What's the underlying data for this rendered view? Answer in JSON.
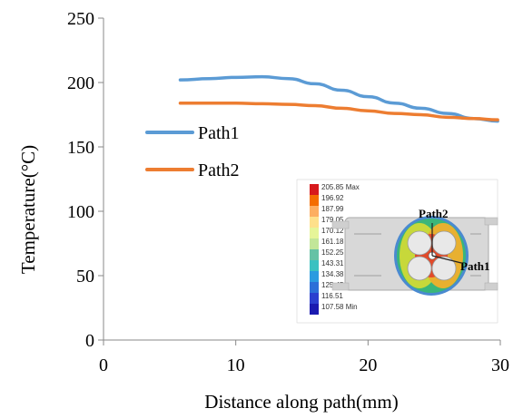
{
  "chart_data": {
    "type": "line",
    "xlabel": "Distance along path(mm)",
    "ylabel": "Temperature(°C)",
    "xlim": [
      0,
      30
    ],
    "ylim": [
      0,
      250
    ],
    "x_ticks": [
      "0",
      "10",
      "20",
      "30"
    ],
    "y_ticks": [
      "0",
      "50",
      "100",
      "150",
      "200",
      "250"
    ],
    "grid": false,
    "legend_position": "left-middle",
    "series": [
      {
        "name": "Path1",
        "color": "#5b9bd5",
        "x": [
          5.8,
          8,
          10,
          12,
          14,
          16,
          18,
          20,
          22,
          24,
          26,
          28,
          29.8
        ],
        "y": [
          202,
          203,
          204,
          204.5,
          203,
          199,
          194,
          189,
          184,
          180,
          176,
          172,
          170
        ]
      },
      {
        "name": "Path2",
        "color": "#ed7d31",
        "x": [
          5.8,
          8,
          10,
          12,
          14,
          16,
          18,
          20,
          22,
          24,
          26,
          28,
          29.8
        ],
        "y": [
          184,
          184,
          184,
          183.5,
          183,
          182,
          180,
          178,
          176,
          175,
          173,
          172,
          171
        ]
      }
    ]
  },
  "inset": {
    "colorbar_labels": [
      "205.85 Max",
      "196.92",
      "187.99",
      "179.05",
      "170.12",
      "161.18",
      "152.25",
      "143.31",
      "134.38",
      "125.45",
      "116.51",
      "107.58 Min"
    ],
    "colorbar_colors": [
      "#d7191c",
      "#f46d00",
      "#fdae61",
      "#fee08b",
      "#e6f598",
      "#c2e699",
      "#66c2a5",
      "#3ac1c1",
      "#2b9be0",
      "#2c6fd8",
      "#2b3fcf",
      "#1a1ab0"
    ],
    "path_labels": [
      "Path2",
      "Path1"
    ]
  }
}
